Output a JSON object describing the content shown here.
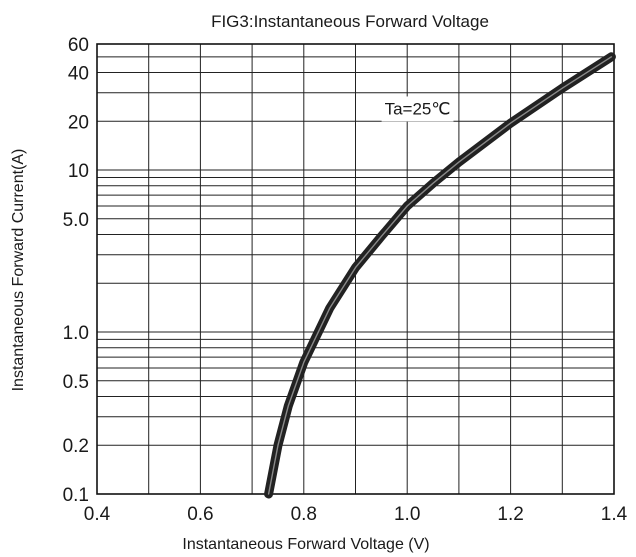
{
  "chart_data": {
    "type": "line",
    "title": "FIG3:Instantaneous Forward Voltage",
    "xlabel": "Instantaneous Forward Voltage (V)",
    "ylabel": "Instantaneous Forward Current(A)",
    "xscale": "linear",
    "yscale": "log",
    "xlim": [
      0.4,
      1.4
    ],
    "ylim": [
      0.1,
      60
    ],
    "grid": true,
    "x_ticks": [
      {
        "value": 0.4,
        "label": "0.4"
      },
      {
        "value": 0.6,
        "label": "0.6"
      },
      {
        "value": 0.8,
        "label": "0.8"
      },
      {
        "value": 1.0,
        "label": "1.0"
      },
      {
        "value": 1.2,
        "label": "1.2"
      },
      {
        "value": 1.4,
        "label": "1.4"
      }
    ],
    "y_ticks": [
      {
        "value": 0.1,
        "label": "0.1"
      },
      {
        "value": 0.2,
        "label": "0.2"
      },
      {
        "value": 0.5,
        "label": "0.5"
      },
      {
        "value": 1.0,
        "label": "1.0"
      },
      {
        "value": 5.0,
        "label": "5.0"
      },
      {
        "value": 10,
        "label": "10"
      },
      {
        "value": 20,
        "label": "20"
      },
      {
        "value": 40,
        "label": "40"
      },
      {
        "value": 60,
        "label": "60"
      }
    ],
    "x_gridlines": [
      0.5,
      0.6,
      0.7,
      0.8,
      0.9,
      1.0,
      1.1,
      1.2,
      1.3
    ],
    "y_gridlines": [
      0.2,
      0.3,
      0.4,
      0.5,
      0.6,
      0.7,
      0.8,
      0.9,
      1,
      2,
      3,
      4,
      5,
      6,
      7,
      8,
      9,
      10,
      20,
      30,
      40,
      50
    ],
    "annotations": [
      {
        "text": "Ta=25℃",
        "x": 1.02,
        "y": 24
      }
    ],
    "series": [
      {
        "color": "#222222",
        "points": [
          [
            0.732,
            0.1
          ],
          [
            0.75,
            0.2
          ],
          [
            0.77,
            0.35
          ],
          [
            0.8,
            0.65
          ],
          [
            0.85,
            1.4
          ],
          [
            0.9,
            2.5
          ],
          [
            0.95,
            3.9
          ],
          [
            1.0,
            6.0
          ],
          [
            1.05,
            8.3
          ],
          [
            1.1,
            11.2
          ],
          [
            1.2,
            19.5
          ],
          [
            1.3,
            32
          ],
          [
            1.395,
            50
          ]
        ]
      }
    ]
  }
}
